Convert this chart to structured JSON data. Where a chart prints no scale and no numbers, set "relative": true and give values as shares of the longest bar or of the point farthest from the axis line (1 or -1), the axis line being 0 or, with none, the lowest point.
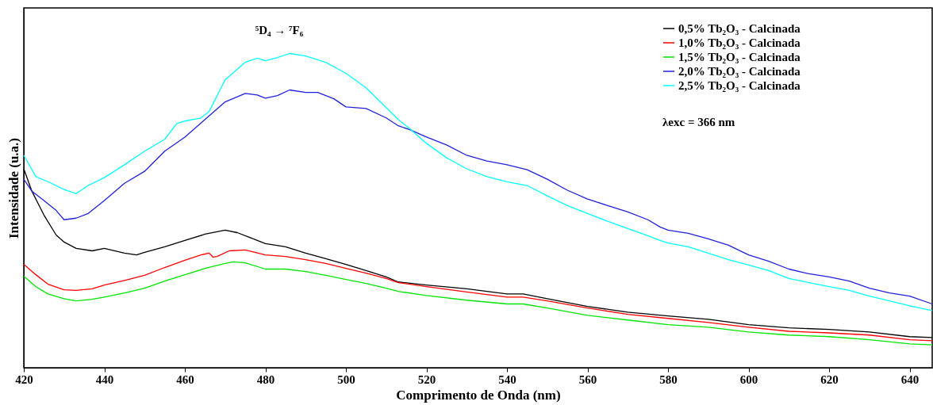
{
  "chart_data": {
    "type": "line",
    "relative": true,
    "xlabel": "Comprimento de Onda (nm)",
    "ylabel": "Intensidade (u.a.)",
    "xlim": [
      420,
      645.6
    ],
    "xticks": [
      420,
      440,
      460,
      480,
      500,
      520,
      540,
      560,
      580,
      600,
      620,
      640
    ],
    "legend": "top right",
    "grid": false,
    "marker": "none",
    "line_style": "solid",
    "annotations": [
      "⁵D₄ → ⁷F₆",
      "λexc = 366 nm"
    ],
    "series": [
      {
        "name": "0,5% Tb₂O₃ - Calcinada",
        "color": "#000000",
        "x": [
          420,
          422,
          425,
          428,
          430,
          433,
          437,
          440,
          445,
          448,
          450,
          455,
          460,
          465,
          470,
          473,
          476,
          480,
          485,
          490,
          495,
          500,
          505,
          510,
          513,
          520,
          530,
          540,
          544,
          550,
          560,
          570,
          580,
          590,
          600,
          610,
          620,
          630,
          640,
          645.6
        ],
        "values": [
          0.633,
          0.562,
          0.486,
          0.423,
          0.4,
          0.38,
          0.372,
          0.38,
          0.365,
          0.359,
          0.367,
          0.385,
          0.405,
          0.425,
          0.438,
          0.43,
          0.415,
          0.395,
          0.385,
          0.365,
          0.347,
          0.329,
          0.309,
          0.289,
          0.273,
          0.263,
          0.251,
          0.235,
          0.235,
          0.22,
          0.195,
          0.177,
          0.165,
          0.154,
          0.137,
          0.127,
          0.122,
          0.114,
          0.099,
          0.096
        ]
      },
      {
        "name": "1,0% Tb₂O₃ - Calcinada",
        "color": "#ff0000",
        "x": [
          420,
          423,
          426,
          430,
          433,
          437,
          440,
          445,
          450,
          455,
          460,
          464,
          466,
          467,
          468,
          471,
          475,
          480,
          485,
          490,
          495,
          500,
          505,
          510,
          513,
          520,
          530,
          540,
          544,
          550,
          560,
          570,
          580,
          590,
          600,
          610,
          620,
          630,
          640,
          645.6
        ],
        "values": [
          0.329,
          0.296,
          0.266,
          0.248,
          0.246,
          0.251,
          0.263,
          0.278,
          0.294,
          0.319,
          0.342,
          0.359,
          0.365,
          0.352,
          0.354,
          0.372,
          0.375,
          0.359,
          0.354,
          0.344,
          0.332,
          0.316,
          0.301,
          0.284,
          0.271,
          0.258,
          0.241,
          0.225,
          0.225,
          0.213,
          0.19,
          0.17,
          0.157,
          0.144,
          0.129,
          0.116,
          0.111,
          0.104,
          0.089,
          0.086
        ]
      },
      {
        "name": "1,5% Tb₂O₃ - Calcinada",
        "color": "#00e600",
        "x": [
          420,
          423,
          426,
          430,
          433,
          437,
          440,
          445,
          450,
          455,
          460,
          465,
          470,
          472,
          475,
          480,
          485,
          490,
          495,
          500,
          505,
          510,
          513,
          520,
          530,
          540,
          544,
          550,
          560,
          570,
          580,
          590,
          600,
          610,
          620,
          630,
          640,
          645.6
        ],
        "values": [
          0.291,
          0.258,
          0.235,
          0.22,
          0.213,
          0.218,
          0.225,
          0.238,
          0.253,
          0.276,
          0.296,
          0.316,
          0.332,
          0.337,
          0.334,
          0.314,
          0.314,
          0.306,
          0.294,
          0.281,
          0.268,
          0.253,
          0.243,
          0.23,
          0.215,
          0.203,
          0.203,
          0.19,
          0.167,
          0.152,
          0.137,
          0.129,
          0.114,
          0.104,
          0.099,
          0.089,
          0.076,
          0.073
        ]
      },
      {
        "name": "2,0% Tb₂O₃ - Calcinada",
        "color": "#2020e0",
        "x": [
          420,
          422,
          425,
          428,
          430,
          433,
          436,
          440,
          445,
          450,
          455,
          460,
          465,
          470,
          475,
          478,
          480,
          483,
          486,
          490,
          493,
          497,
          500,
          505,
          510,
          513,
          516,
          520,
          525,
          530,
          535,
          540,
          545,
          550,
          555,
          560,
          565,
          570,
          575,
          578,
          580,
          585,
          590,
          595,
          600,
          605,
          610,
          615,
          620,
          625,
          630,
          635,
          640,
          645.6
        ],
        "values": [
          0.6,
          0.562,
          0.532,
          0.501,
          0.471,
          0.476,
          0.491,
          0.532,
          0.587,
          0.625,
          0.689,
          0.734,
          0.79,
          0.846,
          0.873,
          0.868,
          0.858,
          0.866,
          0.884,
          0.876,
          0.876,
          0.856,
          0.83,
          0.825,
          0.795,
          0.77,
          0.757,
          0.734,
          0.709,
          0.676,
          0.658,
          0.646,
          0.63,
          0.6,
          0.565,
          0.537,
          0.516,
          0.496,
          0.471,
          0.448,
          0.438,
          0.428,
          0.41,
          0.39,
          0.359,
          0.339,
          0.314,
          0.299,
          0.289,
          0.276,
          0.253,
          0.238,
          0.228,
          0.203
        ]
      },
      {
        "name": "2,5% Tb₂O₃ - Calcinada",
        "color": "#00ffff",
        "x": [
          420,
          423,
          426,
          430,
          433,
          436,
          440,
          445,
          450,
          455,
          458,
          460,
          464,
          466,
          470,
          475,
          478,
          480,
          483,
          486,
          490,
          495,
          500,
          505,
          510,
          513,
          516,
          520,
          525,
          530,
          535,
          540,
          545,
          550,
          555,
          560,
          565,
          570,
          575,
          578,
          580,
          585,
          590,
          595,
          600,
          605,
          610,
          615,
          620,
          625,
          630,
          635,
          640,
          645.6
        ],
        "values": [
          0.676,
          0.608,
          0.592,
          0.567,
          0.554,
          0.58,
          0.605,
          0.646,
          0.689,
          0.727,
          0.777,
          0.785,
          0.795,
          0.815,
          0.916,
          0.972,
          0.985,
          0.977,
          0.987,
          1.0,
          0.992,
          0.972,
          0.937,
          0.891,
          0.828,
          0.79,
          0.759,
          0.714,
          0.668,
          0.633,
          0.608,
          0.592,
          0.58,
          0.547,
          0.516,
          0.491,
          0.466,
          0.443,
          0.42,
          0.405,
          0.397,
          0.385,
          0.365,
          0.344,
          0.327,
          0.309,
          0.284,
          0.271,
          0.258,
          0.246,
          0.228,
          0.213,
          0.197,
          0.182
        ]
      }
    ]
  }
}
